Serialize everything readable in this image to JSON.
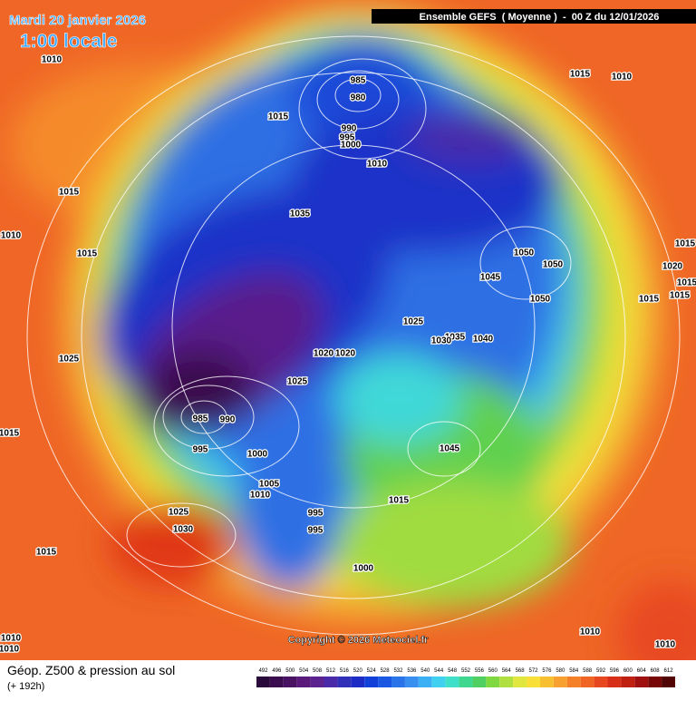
{
  "header": {
    "date": "Mardi 20 janvier 2026",
    "time": "1:00 locale",
    "run": "Ensemble GEFS  ( Moyenne )  -  00 Z du 12/01/2026"
  },
  "isobar_labels": [
    1010,
    1015,
    985,
    980,
    990,
    995,
    1000,
    1010,
    1015,
    1010,
    1015,
    1035,
    1010,
    1015,
    1050,
    1050,
    1045,
    1015,
    1020,
    1015,
    1015,
    1015,
    1050,
    1025,
    1035,
    1030,
    1040,
    1025,
    1020,
    1020,
    1025,
    985,
    990,
    1015,
    995,
    1000,
    1045,
    1005,
    1010,
    1015,
    995,
    1025,
    995,
    1030,
    1015,
    1000,
    1010,
    1010,
    1010,
    1010
  ],
  "copyright": "Copyright © 2026 Meteociel.fr",
  "footer": {
    "title": "Géop. Z500 & pression au sol",
    "lead": "(+ 192h)"
  },
  "scale": [
    {
      "value": 492,
      "color": "#2a0a3a"
    },
    {
      "value": 496,
      "color": "#3a0d4e"
    },
    {
      "value": 500,
      "color": "#4a1262"
    },
    {
      "value": 504,
      "color": "#5a1a7a"
    },
    {
      "value": 508,
      "color": "#5c2390"
    },
    {
      "value": 512,
      "color": "#4a2aa8"
    },
    {
      "value": 516,
      "color": "#3030b8"
    },
    {
      "value": 520,
      "color": "#1c2cc4"
    },
    {
      "value": 524,
      "color": "#1040d8"
    },
    {
      "value": 528,
      "color": "#1a58e4"
    },
    {
      "value": 532,
      "color": "#2a74ea"
    },
    {
      "value": 536,
      "color": "#3a90f0"
    },
    {
      "value": 540,
      "color": "#3cb0f4"
    },
    {
      "value": 544,
      "color": "#40d0f0"
    },
    {
      "value": 548,
      "color": "#40e0c8"
    },
    {
      "value": 552,
      "color": "#40d890"
    },
    {
      "value": 556,
      "color": "#50d060"
    },
    {
      "value": 560,
      "color": "#80d840"
    },
    {
      "value": 564,
      "color": "#b0e040"
    },
    {
      "value": 568,
      "color": "#e0e840"
    },
    {
      "value": 572,
      "color": "#f8e038"
    },
    {
      "value": 576,
      "color": "#f8c030"
    },
    {
      "value": 580,
      "color": "#f8a030"
    },
    {
      "value": 584,
      "color": "#f48028"
    },
    {
      "value": 588,
      "color": "#f06424"
    },
    {
      "value": 592,
      "color": "#e84820"
    },
    {
      "value": 596,
      "color": "#d83018"
    },
    {
      "value": 600,
      "color": "#c02010"
    },
    {
      "value": 604,
      "color": "#a01010"
    },
    {
      "value": 608,
      "color": "#780808"
    },
    {
      "value": 612,
      "color": "#500404"
    }
  ]
}
